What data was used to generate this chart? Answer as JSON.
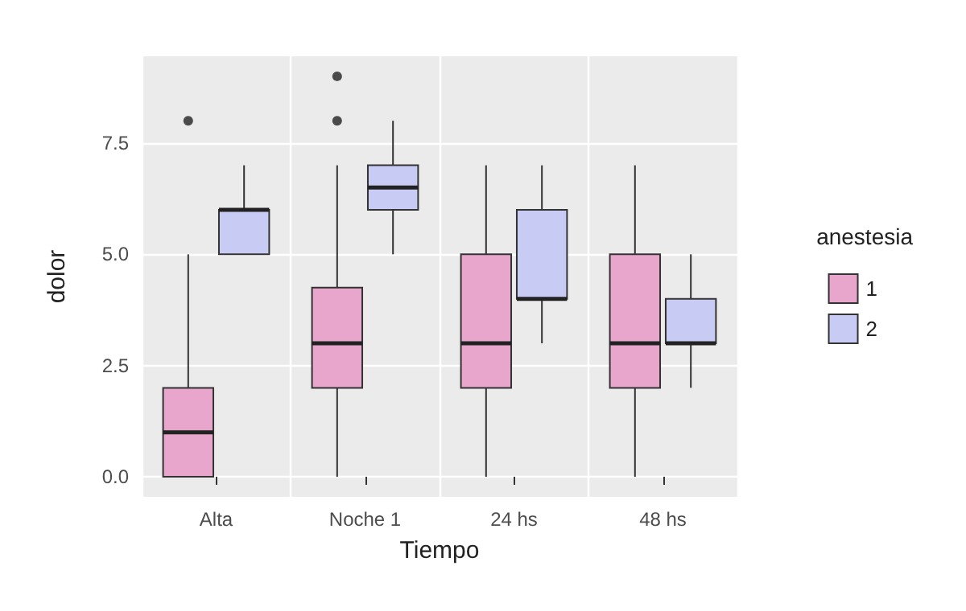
{
  "chart_data": {
    "type": "box",
    "xlabel": "Tiempo",
    "ylabel": "dolor",
    "legend_title": "anestesia",
    "categories": [
      "Alta",
      "Noche 1",
      "24 hs",
      "48 hs"
    ],
    "series": [
      {
        "name": "1",
        "color": "#e8a6cc",
        "boxes": [
          {
            "low": 0,
            "q1": 0,
            "median": 1,
            "q3": 2,
            "high": 5,
            "outliers": [
              8
            ]
          },
          {
            "low": 0,
            "q1": 2,
            "median": 3,
            "q3": 4.25,
            "high": 7,
            "outliers": [
              8,
              9
            ]
          },
          {
            "low": 0,
            "q1": 2,
            "median": 3,
            "q3": 5,
            "high": 7
          },
          {
            "low": 0,
            "q1": 2,
            "median": 3,
            "q3": 5,
            "high": 7
          }
        ]
      },
      {
        "name": "2",
        "color": "#c8ccf5",
        "boxes": [
          {
            "low": 5,
            "q1": 5,
            "median": 6,
            "q3": 6,
            "high": 7
          },
          {
            "low": 5,
            "q1": 6,
            "median": 6.5,
            "q3": 7,
            "high": 8
          },
          {
            "low": 3,
            "q1": 4,
            "median": 4,
            "q3": 6,
            "high": 7
          },
          {
            "low": 2,
            "q1": 3,
            "median": 3,
            "q3": 4,
            "high": 5
          }
        ]
      }
    ],
    "ylim": [
      -0.45,
      9.45
    ],
    "yticks": [
      {
        "value": 0,
        "label": "0.0"
      },
      {
        "value": 2.5,
        "label": "2.5"
      },
      {
        "value": 5,
        "label": "5.0"
      },
      {
        "value": 7.5,
        "label": "7.5"
      }
    ],
    "grid": true,
    "legend": "right"
  }
}
